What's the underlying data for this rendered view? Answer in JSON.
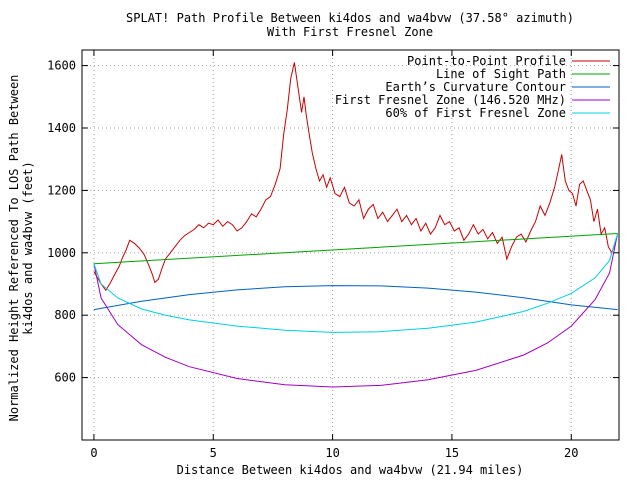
{
  "chart_data": {
    "type": "line",
    "title_line1": "SPLAT! Path Profile Between ki4dos and wa4bvw (37.58° azimuth)",
    "title_line2": "With First Fresnel Zone",
    "xlabel": "Distance Between ki4dos and wa4bvw (21.94 miles)",
    "ylabel_line1": "Normalized Height Referenced To LOS Path Between",
    "ylabel_line2": "ki4dos and wa4bvw (feet)",
    "xlim": [
      -0.5,
      22
    ],
    "ylim": [
      400,
      1650
    ],
    "xticks": [
      0,
      5,
      10,
      15,
      20
    ],
    "yticks": [
      600,
      800,
      1000,
      1200,
      1400,
      1600
    ],
    "grid": true,
    "legend_position": "top-right",
    "series": [
      {
        "name": "Point-to-Point Profile",
        "color": "#cc0000",
        "x": [
          0,
          0.15,
          0.3,
          0.5,
          0.7,
          0.9,
          1.05,
          1.2,
          1.35,
          1.5,
          1.7,
          1.9,
          2.1,
          2.3,
          2.45,
          2.55,
          2.7,
          2.85,
          3.0,
          3.2,
          3.4,
          3.6,
          3.8,
          4.0,
          4.2,
          4.4,
          4.6,
          4.8,
          5.0,
          5.2,
          5.4,
          5.6,
          5.8,
          6.0,
          6.2,
          6.4,
          6.6,
          6.8,
          7.0,
          7.2,
          7.4,
          7.6,
          7.8,
          7.95,
          8.1,
          8.25,
          8.4,
          8.55,
          8.7,
          8.8,
          8.9,
          9.0,
          9.15,
          9.3,
          9.45,
          9.6,
          9.75,
          9.9,
          10.1,
          10.3,
          10.5,
          10.7,
          10.9,
          11.1,
          11.3,
          11.5,
          11.7,
          11.9,
          12.1,
          12.3,
          12.5,
          12.7,
          12.9,
          13.1,
          13.3,
          13.5,
          13.7,
          13.9,
          14.1,
          14.3,
          14.5,
          14.7,
          14.9,
          15.1,
          15.3,
          15.5,
          15.7,
          15.9,
          16.1,
          16.3,
          16.5,
          16.7,
          16.9,
          17.1,
          17.3,
          17.5,
          17.7,
          17.9,
          18.1,
          18.3,
          18.5,
          18.7,
          18.9,
          19.1,
          19.3,
          19.45,
          19.6,
          19.75,
          19.9,
          20.05,
          20.2,
          20.35,
          20.5,
          20.65,
          20.8,
          20.95,
          21.1,
          21.25,
          21.4,
          21.55,
          21.7,
          21.85
        ],
        "y": [
          940,
          920,
          900,
          880,
          905,
          935,
          955,
          985,
          1010,
          1040,
          1030,
          1015,
          995,
          960,
          930,
          905,
          915,
          950,
          980,
          1000,
          1020,
          1040,
          1055,
          1065,
          1075,
          1090,
          1080,
          1095,
          1090,
          1105,
          1085,
          1100,
          1090,
          1070,
          1080,
          1100,
          1125,
          1115,
          1140,
          1170,
          1180,
          1220,
          1270,
          1380,
          1460,
          1560,
          1610,
          1530,
          1450,
          1500,
          1440,
          1390,
          1320,
          1270,
          1230,
          1250,
          1210,
          1240,
          1190,
          1180,
          1210,
          1160,
          1150,
          1170,
          1110,
          1140,
          1155,
          1110,
          1130,
          1100,
          1120,
          1140,
          1100,
          1120,
          1090,
          1110,
          1070,
          1095,
          1060,
          1080,
          1120,
          1090,
          1100,
          1070,
          1080,
          1040,
          1060,
          1090,
          1060,
          1075,
          1045,
          1065,
          1030,
          1050,
          980,
          1020,
          1050,
          1060,
          1035,
          1070,
          1100,
          1150,
          1120,
          1160,
          1210,
          1260,
          1315,
          1230,
          1200,
          1190,
          1150,
          1220,
          1230,
          1200,
          1170,
          1100,
          1140,
          1060,
          1080,
          1020,
          1000,
          1035
        ]
      },
      {
        "name": "Line of Sight Path",
        "color": "#00a000",
        "x": [
          0,
          21.94
        ],
        "y": [
          965,
          1062
        ]
      },
      {
        "name": "Earth’s Curvature Contour",
        "color": "#0060c0",
        "x": [
          0,
          2,
          4,
          6,
          8,
          10,
          12,
          14,
          16,
          18,
          20,
          21.94
        ],
        "y": [
          818,
          845,
          866,
          881,
          891,
          895,
          894,
          887,
          874,
          856,
          833,
          818
        ]
      },
      {
        "name": "First Fresnel Zone (146.520 MHz)",
        "color": "#a000c0",
        "x": [
          0,
          0.3,
          1,
          2,
          3,
          4,
          6,
          8,
          10,
          12,
          14,
          16,
          18,
          19,
          20,
          21,
          21.6,
          21.94
        ],
        "y": [
          965,
          855,
          770,
          705,
          665,
          635,
          597,
          577,
          570,
          575,
          593,
          623,
          672,
          711,
          765,
          850,
          935,
          1062
        ]
      },
      {
        "name": "60% of First Fresnel Zone",
        "color": "#00d0e0",
        "x": [
          0,
          0.3,
          1,
          2,
          3,
          4,
          6,
          8,
          10,
          12,
          14,
          16,
          18,
          19,
          20,
          21,
          21.6,
          21.94
        ],
        "y": [
          965,
          900,
          855,
          820,
          800,
          785,
          765,
          752,
          745,
          747,
          758,
          778,
          812,
          838,
          870,
          920,
          975,
          1062
        ]
      }
    ]
  }
}
